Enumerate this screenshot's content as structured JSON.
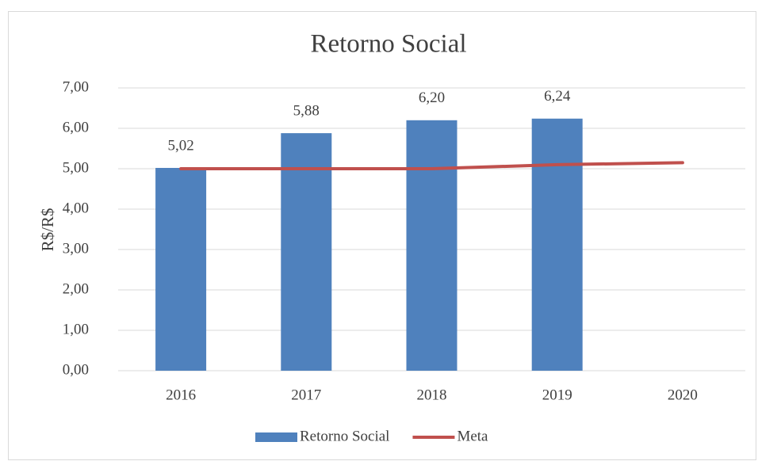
{
  "chart_data": {
    "type": "bar",
    "title": "Retorno Social",
    "y_label": "R$/R$",
    "categories": [
      "2016",
      "2017",
      "2018",
      "2019",
      "2020"
    ],
    "series": [
      {
        "name": "Retorno Social",
        "type": "bar",
        "color": "#4f81bd",
        "values": [
          5.02,
          5.88,
          6.2,
          6.24,
          null
        ],
        "value_labels": [
          "5,02",
          "5,88",
          "6,20",
          "6,24",
          null
        ]
      },
      {
        "name": "Meta",
        "type": "line",
        "color": "#c0504d",
        "values": [
          5.0,
          5.0,
          5.0,
          5.1,
          5.15
        ]
      }
    ],
    "ylim": [
      0,
      7
    ],
    "yticks": [
      {
        "value": 0,
        "label": "0,00"
      },
      {
        "value": 1,
        "label": "1,00"
      },
      {
        "value": 2,
        "label": "2,00"
      },
      {
        "value": 3,
        "label": "3,00"
      },
      {
        "value": 4,
        "label": "4,00"
      },
      {
        "value": 5,
        "label": "5,00"
      },
      {
        "value": 6,
        "label": "6,00"
      },
      {
        "value": 7,
        "label": "7,00"
      }
    ],
    "grid": true,
    "legend": "bottom"
  }
}
